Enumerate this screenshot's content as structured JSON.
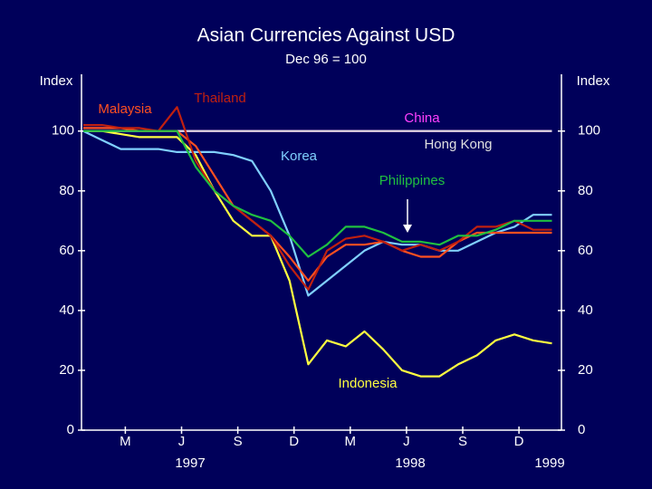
{
  "chart_data": {
    "type": "line",
    "title": "Asian Currencies Against USD",
    "subtitle": "Dec 96 = 100",
    "y_label": "Index",
    "y2_label": "Index",
    "categories": [
      null,
      null,
      "M",
      null,
      null,
      "J",
      null,
      null,
      "S",
      null,
      null,
      "D",
      null,
      null,
      "M",
      null,
      null,
      "J",
      null,
      null,
      "S",
      null,
      null,
      "D",
      null,
      null
    ],
    "year_labels": [
      "1997",
      "1998",
      "1999"
    ],
    "ylim": [
      0,
      119
    ],
    "yticks": [
      0,
      20,
      40,
      60,
      80,
      100
    ],
    "series": [
      {
        "name": "China",
        "color": "#ff40ff",
        "values": [
          100,
          100,
          100,
          100,
          100,
          100,
          100,
          100,
          100,
          100,
          100,
          100,
          100,
          100,
          100,
          100,
          100,
          100,
          100,
          100,
          100,
          100,
          100,
          100,
          100,
          100
        ]
      },
      {
        "name": "Hong Kong",
        "color": "#e0e0e0",
        "values": [
          100,
          100,
          100,
          100,
          100,
          100,
          100,
          100,
          100,
          100,
          100,
          100,
          100,
          100,
          100,
          100,
          100,
          100,
          100,
          100,
          100,
          100,
          100,
          100,
          100,
          100
        ]
      },
      {
        "name": "Indonesia",
        "color": "#ffff40",
        "values": [
          100,
          100,
          99,
          98,
          98,
          98,
          92,
          80,
          70,
          65,
          65,
          50,
          22,
          30,
          28,
          33,
          27,
          20,
          18,
          18,
          22,
          25,
          30,
          32,
          30,
          29
        ]
      },
      {
        "name": "Korea",
        "color": "#80d0ff",
        "values": [
          100,
          97,
          94,
          94,
          94,
          93,
          93,
          93,
          92,
          90,
          80,
          65,
          45,
          50,
          55,
          60,
          63,
          62,
          62,
          60,
          60,
          63,
          66,
          68,
          72,
          72
        ]
      },
      {
        "name": "Malaysia",
        "color": "#ff5020",
        "values": [
          101,
          101,
          101,
          100,
          100,
          100,
          95,
          85,
          75,
          70,
          65,
          58,
          50,
          58,
          62,
          62,
          63,
          60,
          58,
          58,
          63,
          66,
          66,
          66,
          66,
          66
        ]
      },
      {
        "name": "Thailand",
        "color": "#c02010",
        "values": [
          102,
          102,
          101,
          101,
          100,
          108,
          90,
          80,
          75,
          70,
          65,
          55,
          47,
          60,
          64,
          65,
          63,
          60,
          62,
          60,
          63,
          68,
          68,
          70,
          67,
          67
        ]
      },
      {
        "name": "Philippines",
        "color": "#20c040",
        "values": [
          100,
          100,
          100,
          100,
          100,
          100,
          88,
          80,
          75,
          72,
          70,
          65,
          58,
          62,
          68,
          68,
          66,
          63,
          63,
          62,
          65,
          65,
          67,
          70,
          70,
          70
        ]
      }
    ]
  }
}
